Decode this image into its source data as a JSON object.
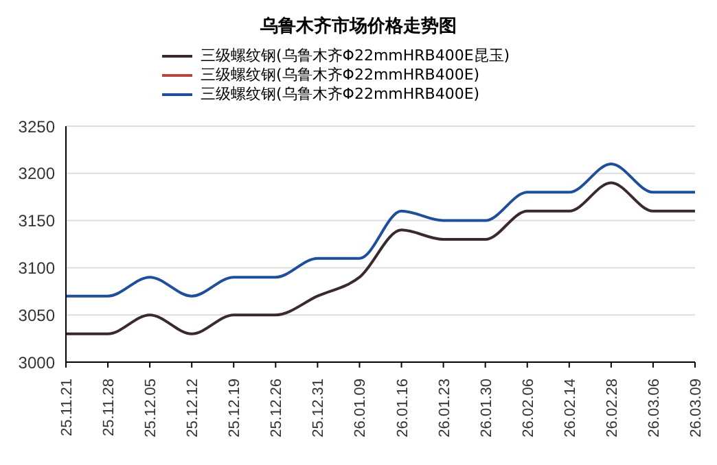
{
  "chart_data": {
    "type": "line",
    "title": "乌鲁木齐市场价格走势图",
    "categories": [
      "25.11.21",
      "25.11.28",
      "25.12.05",
      "25.12.12",
      "25.12.19",
      "25.12.26",
      "25.12.31",
      "26.01.09",
      "26.01.16",
      "26.01.23",
      "26.01.30",
      "26.02.06",
      "26.02.14",
      "26.02.28",
      "26.03.06",
      "26.03.09"
    ],
    "series": [
      {
        "name": "三级螺纹钢(乌鲁木齐Φ22mmHRB400E昆玉)",
        "color": "#3b2a2a",
        "values": [
          3030,
          3030,
          3050,
          3030,
          3050,
          3050,
          3070,
          3090,
          3140,
          3130,
          3130,
          3160,
          3160,
          3190,
          3160,
          3160
        ]
      },
      {
        "name": "三级螺纹钢(乌鲁木齐Φ22mmHRB400E)",
        "color": "#b5473f",
        "values": [
          null,
          null,
          null,
          null,
          null,
          null,
          null,
          null,
          null,
          null,
          null,
          null,
          null,
          null,
          null,
          null
        ]
      },
      {
        "name": "三级螺纹钢(乌鲁木齐Φ22mmHRB400E)",
        "color": "#1f4e9a",
        "values": [
          3070,
          3070,
          3090,
          3070,
          3090,
          3090,
          3110,
          3110,
          3160,
          3150,
          3150,
          3180,
          3180,
          3210,
          3180,
          3180
        ]
      }
    ],
    "ylim": [
      3000,
      3250
    ],
    "yticks": [
      3000,
      3050,
      3100,
      3150,
      3200,
      3250
    ],
    "grid": "y",
    "legend": "top",
    "marker": "none",
    "line_style": "solid"
  }
}
